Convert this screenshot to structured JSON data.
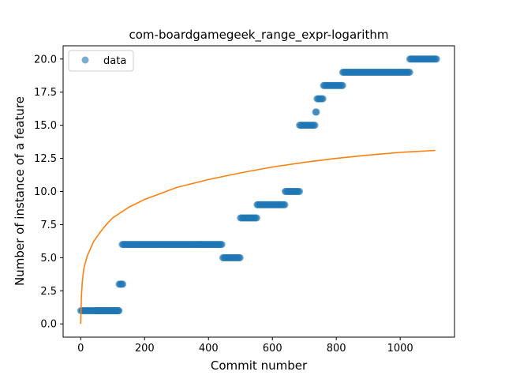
{
  "chart_data": {
    "type": "scatter",
    "title": "com-boardgamegeek_range_expr-logarithm",
    "xlabel": "Commit number",
    "ylabel": "Number of instance of a feature",
    "xlim": [
      -55,
      1170
    ],
    "ylim": [
      -1.0,
      21.0
    ],
    "xticks": [
      0,
      200,
      400,
      600,
      800,
      1000
    ],
    "yticks": [
      0.0,
      2.5,
      5.0,
      7.5,
      10.0,
      12.5,
      15.0,
      17.5,
      20.0
    ],
    "xtick_labels": [
      "0",
      "200",
      "400",
      "600",
      "800",
      "1000"
    ],
    "ytick_labels": [
      "0.0",
      "2.5",
      "5.0",
      "7.5",
      "10.0",
      "12.5",
      "15.0",
      "17.5",
      "20.0"
    ],
    "grid": false,
    "legend": {
      "placement": "top-left",
      "entries": [
        "data"
      ]
    },
    "series": [
      {
        "name": "data",
        "kind": "scatter",
        "color": "#1f77b4",
        "segments": [
          {
            "x_start": 0,
            "x_end": 118,
            "y": 1
          },
          {
            "x_start": 45,
            "x_end": 120,
            "y": 1
          },
          {
            "x_start": 120,
            "x_end": 133,
            "y": 3
          },
          {
            "x_start": 130,
            "x_end": 443,
            "y": 6
          },
          {
            "x_start": 445,
            "x_end": 500,
            "y": 5
          },
          {
            "x_start": 500,
            "x_end": 552,
            "y": 8
          },
          {
            "x_start": 552,
            "x_end": 640,
            "y": 9
          },
          {
            "x_start": 640,
            "x_end": 685,
            "y": 10
          },
          {
            "x_start": 685,
            "x_end": 735,
            "y": 15
          },
          {
            "x_start": 735,
            "x_end": 740,
            "y": 16
          },
          {
            "x_start": 740,
            "x_end": 760,
            "y": 17
          },
          {
            "x_start": 760,
            "x_end": 820,
            "y": 18
          },
          {
            "x_start": 820,
            "x_end": 1030,
            "y": 19
          },
          {
            "x_start": 1030,
            "x_end": 1115,
            "y": 20
          }
        ]
      },
      {
        "kind": "line",
        "color": "#ff7f0e",
        "function": "logarithmic fit",
        "points": [
          [
            0,
            0.0
          ],
          [
            2,
            2.0
          ],
          [
            5,
            3.2
          ],
          [
            10,
            4.2
          ],
          [
            20,
            5.1
          ],
          [
            40,
            6.2
          ],
          [
            60,
            6.9
          ],
          [
            80,
            7.5
          ],
          [
            100,
            8.0
          ],
          [
            150,
            8.8
          ],
          [
            200,
            9.4
          ],
          [
            300,
            10.3
          ],
          [
            400,
            10.9
          ],
          [
            500,
            11.4
          ],
          [
            600,
            11.85
          ],
          [
            700,
            12.2
          ],
          [
            800,
            12.5
          ],
          [
            900,
            12.75
          ],
          [
            1000,
            12.95
          ],
          [
            1110,
            13.1
          ]
        ]
      }
    ]
  }
}
